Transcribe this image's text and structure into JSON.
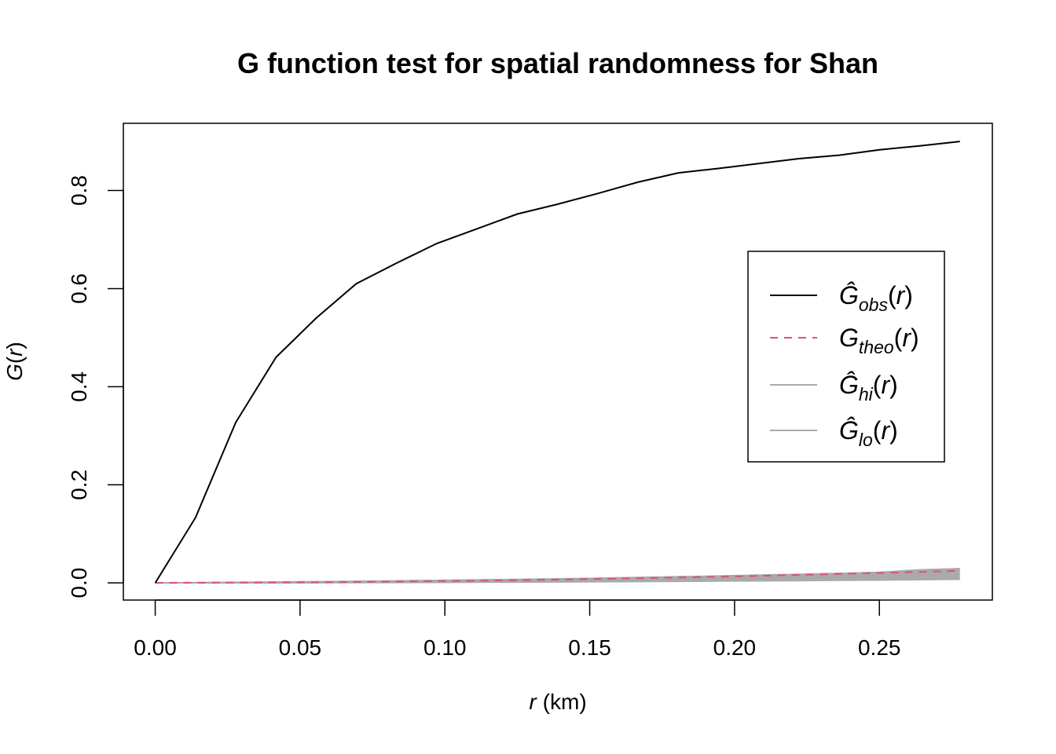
{
  "chart_data": {
    "type": "line",
    "title": "G function test for spatial randomness for Shan",
    "xlabel_var": "r",
    "xlabel_unit": "(km)",
    "ylabel_fn": "G",
    "ylabel_open": "(",
    "ylabel_var": "r",
    "ylabel_close": ")",
    "xlim": [
      -0.011,
      0.289
    ],
    "ylim": [
      -0.035,
      0.937
    ],
    "xticks": [
      0.0,
      0.05,
      0.1,
      0.15,
      0.2,
      0.25
    ],
    "xtick_labels": [
      "0.00",
      "0.05",
      "0.10",
      "0.15",
      "0.20",
      "0.25"
    ],
    "yticks": [
      0.0,
      0.2,
      0.4,
      0.6,
      0.8
    ],
    "ytick_labels": [
      "0.0",
      "0.2",
      "0.4",
      "0.6",
      "0.8"
    ],
    "grid": false,
    "legend_position": "right",
    "x": [
      0,
      0.0139,
      0.0278,
      0.0417,
      0.0556,
      0.0694,
      0.0833,
      0.0972,
      0.1111,
      0.125,
      0.1389,
      0.1528,
      0.1667,
      0.1806,
      0.1944,
      0.2083,
      0.2222,
      0.2361,
      0.25,
      0.2639,
      0.2778
    ],
    "series": [
      {
        "key": "obs",
        "legend": {
          "main": "Ĝ",
          "sub": "obs",
          "open": "(",
          "var": "r",
          "close": ")"
        },
        "color": "#000000",
        "values": [
          0,
          0.133,
          0.327,
          0.46,
          0.54,
          0.61,
          0.652,
          0.692,
          0.722,
          0.752,
          0.772,
          0.794,
          0.817,
          0.836,
          0.845,
          0.855,
          0.865,
          0.872,
          0.883,
          0.891,
          0.9
        ]
      },
      {
        "key": "theo",
        "legend": {
          "main": "G",
          "sub": "theo",
          "open": "(",
          "var": "r",
          "close": ")"
        },
        "color": "#DF536B",
        "values": [
          0,
          0.0002,
          0.0005,
          0.0009,
          0.0014,
          0.002,
          0.0028,
          0.0036,
          0.0046,
          0.0056,
          0.0068,
          0.0081,
          0.0095,
          0.011,
          0.0126,
          0.0144,
          0.0162,
          0.0182,
          0.0203,
          0.0224,
          0.0247
        ]
      },
      {
        "key": "hi",
        "legend": {
          "main": "Ĝ",
          "sub": "hi",
          "open": "(",
          "var": "r",
          "close": ")"
        },
        "color": "#AAAAAA",
        "values": [
          0,
          0.0007,
          0.0012,
          0.0018,
          0.0025,
          0.0032,
          0.004,
          0.005,
          0.006,
          0.007,
          0.0082,
          0.0095,
          0.011,
          0.0125,
          0.014,
          0.0158,
          0.0176,
          0.0195,
          0.0215,
          0.0265,
          0.029
        ]
      },
      {
        "key": "lo",
        "legend": {
          "main": "Ĝ",
          "sub": "lo",
          "open": "(",
          "var": "r",
          "close": ")"
        },
        "color": "#AAAAAA",
        "values": [
          0,
          0,
          0,
          0,
          0.0002,
          0.0005,
          0.0008,
          0.001,
          0.0013,
          0.0016,
          0.002,
          0.0024,
          0.0028,
          0.0032,
          0.0037,
          0.0042,
          0.0047,
          0.0053,
          0.0059,
          0.0066,
          0.0075
        ]
      }
    ]
  }
}
